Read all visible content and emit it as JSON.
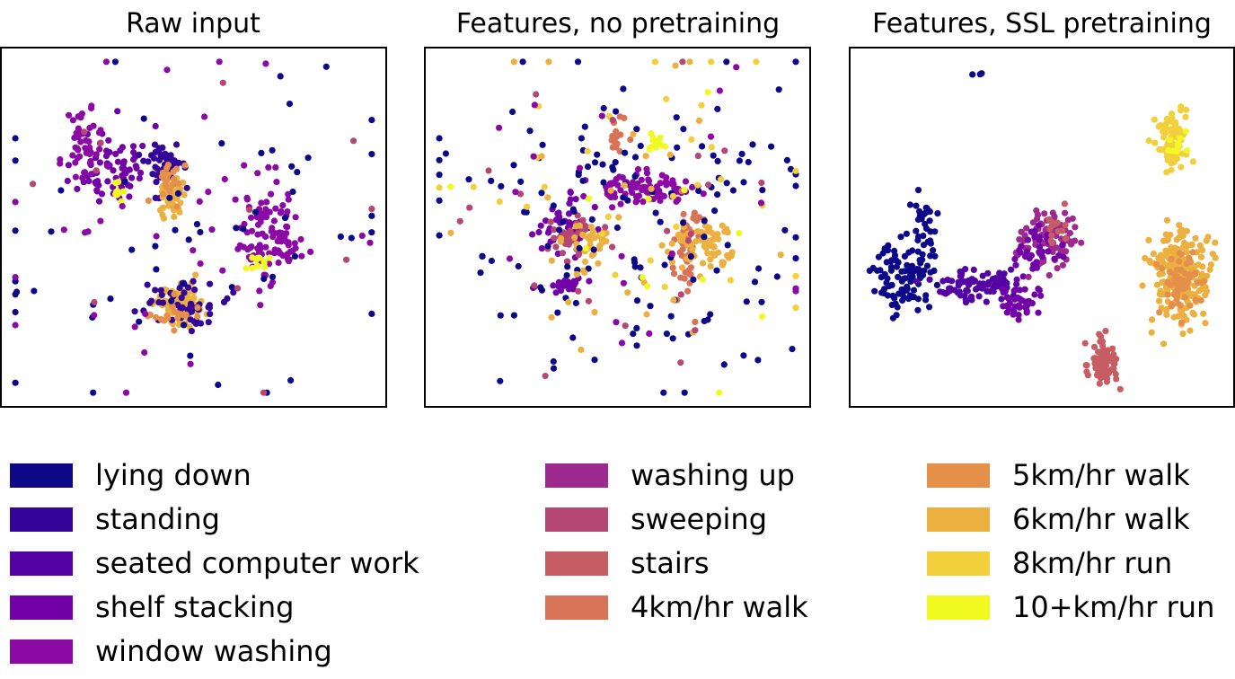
{
  "chart_data": {
    "type": "scatter",
    "figure_description_note": "",
    "panels": [
      {
        "title": "Raw input",
        "seed": 11,
        "xlim": [
          0,
          100
        ],
        "ylim": [
          0,
          100
        ],
        "clusters": [
          {
            "cat": 3,
            "cx": 28,
            "cy": 68,
            "sx": 5,
            "sy": 6,
            "n": 70
          },
          {
            "cat": 4,
            "cx": 20,
            "cy": 74,
            "sx": 3,
            "sy": 6,
            "n": 45
          },
          {
            "cat": 1,
            "cx": 42,
            "cy": 67,
            "sx": 2.5,
            "sy": 5,
            "n": 55
          },
          {
            "cat": 10,
            "cx": 44,
            "cy": 60,
            "sx": 2,
            "sy": 3,
            "n": 45
          },
          {
            "cat": 9,
            "cx": 43,
            "cy": 63,
            "sx": 2,
            "sy": 3,
            "n": 20
          },
          {
            "cat": 4,
            "cx": 71,
            "cy": 48,
            "sx": 4,
            "sy": 7,
            "n": 100
          },
          {
            "cat": 12,
            "cx": 69,
            "cy": 39,
            "sx": 2,
            "sy": 1.5,
            "n": 12
          },
          {
            "cat": 10,
            "cx": 46,
            "cy": 28,
            "sx": 3.5,
            "sy": 3,
            "n": 90
          },
          {
            "cat": 1,
            "cx": 47,
            "cy": 28,
            "sx": 5,
            "sy": 4,
            "n": 50
          },
          {
            "cat": 9,
            "cx": 44,
            "cy": 24,
            "sx": 3,
            "sy": 2,
            "n": 20
          },
          {
            "cat": 12,
            "cx": 29,
            "cy": 61,
            "sx": 1,
            "sy": 1.5,
            "n": 10
          },
          {
            "cat": 0,
            "cx": 50,
            "cy": 50,
            "sx": 28,
            "sy": 26,
            "n": 60
          },
          {
            "cat": 4,
            "cx": 50,
            "cy": 50,
            "sx": 26,
            "sy": 25,
            "n": 35
          },
          {
            "cat": 6,
            "cx": 50,
            "cy": 50,
            "sx": 26,
            "sy": 25,
            "n": 12
          }
        ]
      },
      {
        "title": "Features, no pretraining",
        "seed": 23,
        "xlim": [
          0,
          100
        ],
        "ylim": [
          0,
          100
        ],
        "clusters": [
          {
            "cat": 4,
            "cx": 56,
            "cy": 61,
            "sx": 7,
            "sy": 2,
            "n": 90
          },
          {
            "cat": 3,
            "cx": 35,
            "cy": 50,
            "sx": 4,
            "sy": 4,
            "n": 45
          },
          {
            "cat": 6,
            "cx": 37,
            "cy": 46,
            "sx": 3,
            "sy": 5,
            "n": 35
          },
          {
            "cat": 10,
            "cx": 42,
            "cy": 46,
            "sx": 3,
            "sy": 3,
            "n": 35
          },
          {
            "cat": 8,
            "cx": 69,
            "cy": 44,
            "sx": 2,
            "sy": 8,
            "n": 55
          },
          {
            "cat": 10,
            "cx": 74,
            "cy": 45,
            "sx": 4,
            "sy": 4,
            "n": 60
          },
          {
            "cat": 8,
            "cx": 50,
            "cy": 77,
            "sx": 1.5,
            "sy": 3,
            "n": 15
          },
          {
            "cat": 12,
            "cx": 60,
            "cy": 75,
            "sx": 2,
            "sy": 1,
            "n": 12
          },
          {
            "cat": 3,
            "cx": 35,
            "cy": 33,
            "sx": 4,
            "sy": 1.2,
            "n": 20
          },
          {
            "cat": 0,
            "cx": 50,
            "cy": 50,
            "sx": 28,
            "sy": 26,
            "n": 150
          },
          {
            "cat": 11,
            "cx": 50,
            "cy": 50,
            "sx": 28,
            "sy": 26,
            "n": 30
          },
          {
            "cat": 10,
            "cx": 50,
            "cy": 50,
            "sx": 27,
            "sy": 25,
            "n": 30
          },
          {
            "cat": 6,
            "cx": 50,
            "cy": 50,
            "sx": 26,
            "sy": 25,
            "n": 25
          },
          {
            "cat": 12,
            "cx": 50,
            "cy": 50,
            "sx": 27,
            "sy": 25,
            "n": 12
          },
          {
            "cat": 4,
            "cx": 50,
            "cy": 50,
            "sx": 26,
            "sy": 25,
            "n": 20
          }
        ]
      },
      {
        "title": "Features, SSL pretraining",
        "seed": 37,
        "xlim": [
          0,
          100
        ],
        "ylim": [
          0,
          100
        ],
        "clusters": [
          {
            "cat": 0,
            "cx": 12,
            "cy": 35,
            "sx": 4,
            "sy": 5,
            "n": 90
          },
          {
            "cat": 0,
            "cx": 17,
            "cy": 50,
            "sx": 2,
            "sy": 7,
            "n": 35
          },
          {
            "cat": 2,
            "cx": 31,
            "cy": 33,
            "sx": 5,
            "sy": 2.5,
            "n": 90
          },
          {
            "cat": 3,
            "cx": 44,
            "cy": 29,
            "sx": 2.5,
            "sy": 3,
            "n": 40
          },
          {
            "cat": 5,
            "cx": 52,
            "cy": 47,
            "sx": 4,
            "sy": 4,
            "n": 90
          },
          {
            "cat": 3,
            "cx": 49,
            "cy": 44,
            "sx": 3,
            "sy": 3,
            "n": 35
          },
          {
            "cat": 7,
            "cx": 54,
            "cy": 50,
            "sx": 2,
            "sy": 3,
            "n": 15
          },
          {
            "cat": 10,
            "cx": 88,
            "cy": 36,
            "sx": 4,
            "sy": 7,
            "n": 230
          },
          {
            "cat": 9,
            "cx": 89,
            "cy": 33,
            "sx": 3,
            "sy": 5,
            "n": 60
          },
          {
            "cat": 11,
            "cx": 86,
            "cy": 75,
            "sx": 2,
            "sy": 4,
            "n": 90
          },
          {
            "cat": 12,
            "cx": 87,
            "cy": 74,
            "sx": 1.5,
            "sy": 2,
            "n": 12
          },
          {
            "cat": 7,
            "cx": 67,
            "cy": 10,
            "sx": 1.8,
            "sy": 3.5,
            "n": 80
          },
          {
            "cat": 0,
            "cx": 33,
            "cy": 95,
            "sx": 0.8,
            "sy": 0.6,
            "n": 3
          }
        ]
      }
    ],
    "legend": [
      {
        "label": "lying down",
        "color": "#0d0887"
      },
      {
        "label": "standing",
        "color": "#350498"
      },
      {
        "label": "seated computer work",
        "color": "#5402a3"
      },
      {
        "label": "shelf stacking",
        "color": "#7201a8"
      },
      {
        "label": "window washing",
        "color": "#8b0aa5"
      },
      {
        "label": "washing up",
        "color": "#9c2a8f"
      },
      {
        "label": "sweeping",
        "color": "#b44773"
      },
      {
        "label": "stairs",
        "color": "#c75d64"
      },
      {
        "label": "4km/hr walk",
        "color": "#d77356"
      },
      {
        "label": "5km/hr walk",
        "color": "#e4904a"
      },
      {
        "label": "6km/hr walk",
        "color": "#ecb040"
      },
      {
        "label": "8km/hr run",
        "color": "#f2d03c"
      },
      {
        "label": "10+km/hr run",
        "color": "#f0f921"
      }
    ]
  }
}
